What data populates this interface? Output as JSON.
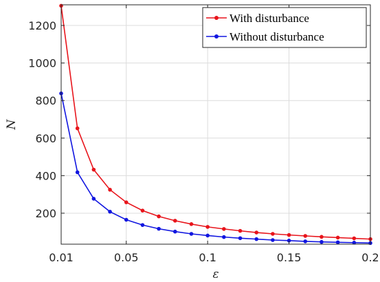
{
  "chart_data": {
    "type": "line",
    "xlabel": "ε",
    "ylabel": "N",
    "xlim": [
      0.01,
      0.2
    ],
    "ylim": [
      35,
      1310
    ],
    "xticks": [
      0.01,
      0.05,
      0.1,
      0.15,
      0.2
    ],
    "xtick_labels": [
      "0.01",
      "0.05",
      "0.1",
      "0.15",
      "0.2"
    ],
    "yticks": [
      200,
      400,
      600,
      800,
      1000,
      1200
    ],
    "ytick_labels": [
      "200",
      "400",
      "600",
      "800",
      "1000",
      "1200"
    ],
    "grid": true,
    "legend_position": "top-right",
    "x": [
      0.01,
      0.02,
      0.03,
      0.04,
      0.05,
      0.06,
      0.07,
      0.08,
      0.09,
      0.1,
      0.11,
      0.12,
      0.13,
      0.14,
      0.15,
      0.16,
      0.17,
      0.18,
      0.19,
      0.2
    ],
    "series": [
      {
        "name": "With disturbance",
        "color": "#e8141b",
        "values": [
          1305,
          652,
          432,
          325,
          258,
          214,
          183,
          160,
          142,
          127,
          116,
          106,
          97,
          90,
          84,
          79,
          74,
          70,
          66,
          62
        ]
      },
      {
        "name": "Without disturbance",
        "color": "#1116e0",
        "values": [
          838,
          418,
          277,
          208,
          165,
          137,
          117,
          102,
          90,
          81,
          73,
          67,
          62,
          57,
          54,
          50,
          47,
          45,
          43,
          41
        ]
      }
    ]
  }
}
